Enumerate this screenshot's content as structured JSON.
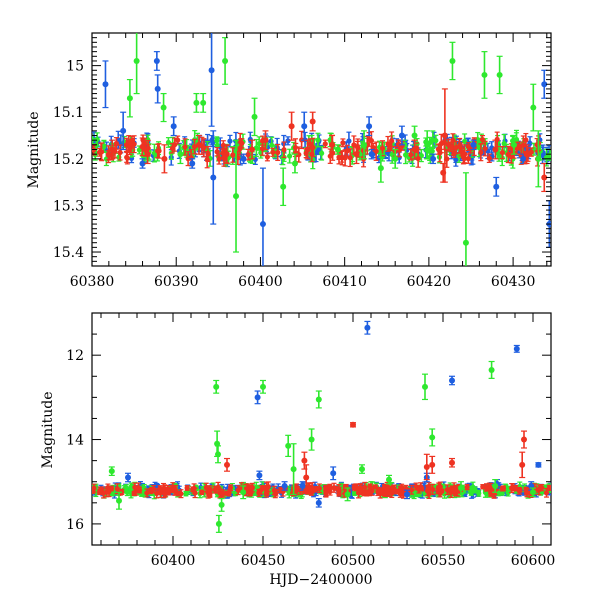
{
  "chart_data": [
    {
      "type": "scatter",
      "title": "",
      "xlabel": "",
      "ylabel": "Magnitude",
      "xlim": [
        60380,
        60434.5
      ],
      "ylim": [
        15.43,
        14.93
      ],
      "y_inverted": true,
      "grid": false,
      "x_ticks": [
        60380,
        60390,
        60400,
        60410,
        60420,
        60430
      ],
      "y_ticks": [
        15,
        15.1,
        15.2,
        15.3,
        15.4
      ],
      "y_tick_labels": [
        "15",
        "15.1",
        "15.2",
        "15.3",
        "15.4"
      ],
      "x_tick_labels": [
        "60380",
        "60390",
        "60400",
        "60410",
        "60420",
        "60430"
      ],
      "baseline_magnitude": 15.18,
      "series": [
        {
          "color": "#1f5fe0",
          "points": [
            [
              60381.6,
              15.04,
              0.05
            ],
            [
              60383.7,
              15.14,
              0.04
            ],
            [
              60387.7,
              14.99,
              0.02
            ],
            [
              60387.8,
              15.05,
              0.03
            ],
            [
              60389.7,
              15.13,
              0.02
            ],
            [
              60394.2,
              15.01,
              0.12
            ],
            [
              60394.4,
              15.24,
              0.1
            ],
            [
              60400.3,
              15.34,
              0.12
            ],
            [
              60405.2,
              15.13,
              0.03
            ],
            [
              60412.9,
              15.13,
              0.02
            ],
            [
              60416.8,
              15.15,
              0.02
            ],
            [
              60428.0,
              15.26,
              0.02
            ],
            [
              60433.7,
              15.04,
              0.03
            ],
            [
              60434.3,
              15.34,
              0.05
            ],
            [
              60386.0,
              15.21,
              0.01
            ],
            [
              60391.9,
              15.21,
              0.01
            ],
            [
              60398.0,
              15.2,
              0.01
            ],
            [
              60413.2,
              15.19,
              0.01
            ],
            [
              60420.5,
              15.2,
              0.01
            ],
            [
              60425.3,
              15.17,
              0.01
            ],
            [
              60431.2,
              15.2,
              0.01
            ]
          ]
        },
        {
          "color": "#2ee82e",
          "points": [
            [
              60384.5,
              15.07,
              0.04
            ],
            [
              60385.3,
              14.99,
              0.07
            ],
            [
              60388.5,
              15.09,
              0.03
            ],
            [
              60392.4,
              15.08,
              0.02
            ],
            [
              60393.2,
              15.08,
              0.02
            ],
            [
              60395.8,
              14.99,
              0.05
            ],
            [
              60397.1,
              15.28,
              0.12
            ],
            [
              60399.3,
              15.11,
              0.04
            ],
            [
              60402.7,
              15.26,
              0.04
            ],
            [
              60412.3,
              15.17,
              0.03
            ],
            [
              60414.3,
              15.22,
              0.03
            ],
            [
              60418.3,
              15.15,
              0.02
            ],
            [
              60419.8,
              15.17,
              0.03
            ],
            [
              60422.8,
              14.99,
              0.04
            ],
            [
              60424.4,
              15.38,
              0.15
            ],
            [
              60426.6,
              15.02,
              0.05
            ],
            [
              60428.4,
              15.02,
              0.04
            ],
            [
              60432.4,
              15.09,
              0.05
            ],
            [
              60433.0,
              15.2,
              0.06
            ],
            [
              60390.5,
              15.19,
              0.02
            ],
            [
              60404.1,
              15.21,
              0.02
            ],
            [
              60409.2,
              15.18,
              0.01
            ],
            [
              60416.0,
              15.2,
              0.02
            ],
            [
              60430.1,
              15.17,
              0.02
            ]
          ]
        },
        {
          "color": "#ee3322",
          "points": [
            [
              60388.6,
              15.2,
              0.03
            ],
            [
              60400.6,
              15.16,
              0.02
            ],
            [
              60403.7,
              15.13,
              0.03
            ],
            [
              60406.2,
              15.12,
              0.02
            ],
            [
              60421.7,
              15.23,
              0.02
            ],
            [
              60421.9,
              15.15,
              0.1
            ],
            [
              60433.7,
              15.24,
              0.03
            ],
            [
              60382.4,
              15.18,
              0.02
            ],
            [
              60386.6,
              15.19,
              0.02
            ],
            [
              60392.7,
              15.17,
              0.02
            ],
            [
              60396.0,
              15.19,
              0.02
            ],
            [
              60399.0,
              15.18,
              0.02
            ],
            [
              60405.6,
              15.18,
              0.02
            ],
            [
              60408.5,
              15.17,
              0.02
            ],
            [
              60411.4,
              15.19,
              0.02
            ],
            [
              60418.3,
              15.18,
              0.02
            ],
            [
              60424.2,
              15.19,
              0.02
            ],
            [
              60427.9,
              15.18,
              0.02
            ],
            [
              60431.6,
              15.19,
              0.02
            ]
          ]
        }
      ]
    },
    {
      "type": "scatter",
      "title": "",
      "xlabel": "HJD−2400000",
      "ylabel": "Magnitude",
      "xlim": [
        60355,
        60610
      ],
      "ylim": [
        16.5,
        11.0
      ],
      "y_inverted": true,
      "grid": false,
      "x_ticks": [
        60400,
        60450,
        60500,
        60550,
        60600
      ],
      "y_ticks": [
        12,
        14,
        16
      ],
      "y_tick_labels": [
        "12",
        "14",
        "16"
      ],
      "x_tick_labels": [
        "60400",
        "60450",
        "60500",
        "60550",
        "60600"
      ],
      "baseline_magnitude": 15.2,
      "series": [
        {
          "color": "#1f5fe0",
          "points": [
            [
              60375,
              14.9,
              0.1
            ],
            [
              60447,
              13.0,
              0.15
            ],
            [
              60448,
              14.85,
              0.1
            ],
            [
              60462,
              15.1,
              0.1
            ],
            [
              60472,
              15.1,
              0.1
            ],
            [
              60481,
              15.5,
              0.1
            ],
            [
              60489,
              14.8,
              0.15
            ],
            [
              60508,
              11.35,
              0.15
            ],
            [
              60530,
              15.3,
              0.1
            ],
            [
              60541,
              14.9,
              0.1
            ],
            [
              60555,
              12.6,
              0.1
            ],
            [
              60580,
              15.05,
              0.1
            ],
            [
              60591,
              11.85,
              0.08
            ],
            [
              60599,
              15.1,
              0.1
            ],
            [
              60603,
              14.6,
              0.05
            ]
          ]
        },
        {
          "color": "#2ee82e",
          "points": [
            [
              60366,
              14.75,
              0.1
            ],
            [
              60370,
              15.45,
              0.2
            ],
            [
              60424,
              12.75,
              0.15
            ],
            [
              60424.5,
              14.1,
              0.3
            ],
            [
              60425,
              14.35,
              0.2
            ],
            [
              60425.5,
              16.0,
              0.2
            ],
            [
              60427,
              15.55,
              0.15
            ],
            [
              60439,
              15.25,
              0.15
            ],
            [
              60450,
              12.75,
              0.15
            ],
            [
              60464,
              14.15,
              0.25
            ],
            [
              60467,
              14.7,
              0.6
            ],
            [
              60477,
              14.0,
              0.25
            ],
            [
              60481,
              13.05,
              0.2
            ],
            [
              60497,
              15.3,
              0.15
            ],
            [
              60505,
              14.7,
              0.1
            ],
            [
              60520,
              14.95,
              0.1
            ],
            [
              60540,
              12.75,
              0.3
            ],
            [
              60544,
              13.95,
              0.2
            ],
            [
              60560,
              15.15,
              0.15
            ],
            [
              60577,
              12.35,
              0.2
            ],
            [
              60579,
              15.1,
              0.15
            ],
            [
              60600,
              15.25,
              0.1
            ]
          ]
        },
        {
          "color": "#ee3322",
          "points": [
            [
              60430,
              14.6,
              0.15
            ],
            [
              60473,
              14.5,
              0.2
            ],
            [
              60474,
              14.9,
              0.3
            ],
            [
              60500,
              13.65,
              0.05
            ],
            [
              60541,
              14.65,
              0.3
            ],
            [
              60544,
              14.6,
              0.2
            ],
            [
              60555,
              14.55,
              0.1
            ],
            [
              60594,
              14.6,
              0.3
            ],
            [
              60595,
              14.0,
              0.2
            ]
          ]
        }
      ]
    }
  ]
}
